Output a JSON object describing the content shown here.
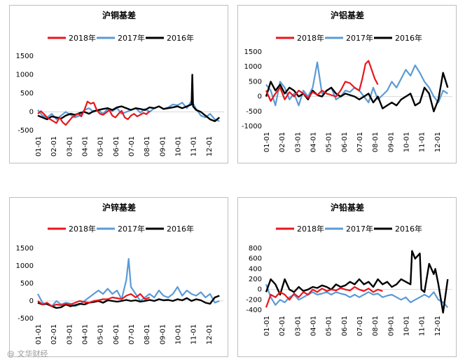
{
  "watermark": "@ 文华财经",
  "series_colors": {
    "2018年": "#e8161c",
    "2017年": "#5b9bd5",
    "2016年": "#000000"
  },
  "chart_data": [
    {
      "type": "line",
      "title": "沪铜基差",
      "legend": [
        "2018年",
        "2017年",
        "2016年"
      ],
      "ylim": [
        -500,
        1500
      ],
      "yticks": [
        -500,
        0,
        500,
        1000,
        1500
      ],
      "categories": [
        "01-01",
        "02-01",
        "03-01",
        "04-01",
        "05-01",
        "06-01",
        "07-01",
        "08-01",
        "09-01",
        "10-01",
        "11-01",
        "12-01"
      ],
      "series": [
        {
          "name": "2018年",
          "x": [
            0,
            0.2,
            0.4,
            0.6,
            0.8,
            1.0,
            1.2,
            1.4,
            1.6,
            1.8,
            2.0,
            2.2,
            2.4,
            2.6,
            2.8,
            3.0,
            3.2,
            3.4,
            3.6,
            3.8,
            4.0,
            4.2,
            4.4,
            4.6,
            4.8,
            5.0,
            5.2,
            5.4,
            5.6,
            5.8,
            6.0,
            6.2,
            6.4,
            6.6,
            6.8,
            7.0,
            7.2
          ],
          "values": [
            -50,
            20,
            -60,
            -150,
            -200,
            -250,
            -300,
            -150,
            -280,
            -350,
            -250,
            -150,
            -100,
            -50,
            -120,
            50,
            280,
            220,
            250,
            50,
            -50,
            -80,
            -20,
            50,
            -100,
            -150,
            -50,
            30,
            -150,
            -200,
            -100,
            -50,
            -120,
            -80,
            -30,
            -60,
            20
          ]
        },
        {
          "name": "2017年",
          "x": [
            0,
            0.3,
            0.6,
            0.9,
            1.2,
            1.5,
            1.8,
            2.1,
            2.4,
            2.7,
            3.0,
            3.3,
            3.6,
            3.9,
            4.2,
            4.5,
            4.8,
            5.1,
            5.4,
            5.7,
            6.0,
            6.3,
            6.6,
            6.9,
            7.2,
            7.5,
            7.8,
            8.1,
            8.4,
            8.7,
            9.0,
            9.3,
            9.6,
            9.9,
            10.2,
            10.5,
            10.8,
            11.1,
            11.4,
            11.7
          ],
          "values": [
            50,
            -100,
            -150,
            -50,
            -200,
            -100,
            0,
            -80,
            -150,
            -100,
            50,
            100,
            0,
            50,
            -50,
            80,
            20,
            100,
            -50,
            0,
            50,
            100,
            -20,
            80,
            0,
            100,
            150,
            80,
            120,
            200,
            180,
            250,
            100,
            300,
            80,
            -100,
            -150,
            -50,
            -200,
            -250
          ]
        },
        {
          "name": "2016年",
          "x": [
            0,
            0.3,
            0.6,
            0.9,
            1.2,
            1.5,
            1.8,
            2.1,
            2.4,
            2.7,
            3.0,
            3.3,
            3.6,
            3.9,
            4.2,
            4.5,
            4.8,
            5.1,
            5.4,
            5.7,
            6.0,
            6.3,
            6.6,
            6.9,
            7.2,
            7.5,
            7.8,
            8.1,
            8.4,
            8.7,
            9.0,
            9.3,
            9.6,
            9.9,
            9.95,
            10.0,
            10.2,
            10.5,
            10.8,
            11.1,
            11.4,
            11.7
          ],
          "values": [
            -100,
            -150,
            -200,
            -120,
            -150,
            -180,
            -100,
            -50,
            -80,
            -30,
            0,
            -50,
            20,
            50,
            80,
            100,
            50,
            120,
            150,
            100,
            50,
            100,
            80,
            50,
            120,
            100,
            150,
            80,
            100,
            120,
            150,
            100,
            150,
            200,
            1000,
            150,
            50,
            0,
            -100,
            -200,
            -250,
            -150
          ]
        }
      ]
    },
    {
      "type": "line",
      "title": "沪铝基差",
      "legend": [
        "2018年",
        "2017年",
        "2016年"
      ],
      "ylim": [
        -1000,
        1500
      ],
      "yticks": [
        -1000,
        -500,
        0,
        500,
        1000,
        1500
      ],
      "categories": [
        "01-01",
        "02-01",
        "03-01",
        "04-01",
        "05-01",
        "06-01",
        "07-01",
        "08-01",
        "09-01",
        "10-01",
        "11-01",
        "12-01"
      ],
      "series": [
        {
          "name": "2018年",
          "x": [
            0,
            0.3,
            0.6,
            0.9,
            1.2,
            1.5,
            1.8,
            2.1,
            2.4,
            2.7,
            3.0,
            3.3,
            3.6,
            3.9,
            4.2,
            4.5,
            4.8,
            5.1,
            5.4,
            5.7,
            6.0,
            6.2,
            6.4,
            6.6,
            6.8,
            7.0,
            7.2
          ],
          "values": [
            200,
            -150,
            100,
            300,
            -100,
            150,
            0,
            200,
            100,
            -50,
            150,
            50,
            200,
            100,
            50,
            0,
            200,
            500,
            450,
            300,
            200,
            600,
            1100,
            1200,
            900,
            600,
            400
          ]
        },
        {
          "name": "2017年",
          "x": [
            0,
            0.3,
            0.6,
            0.9,
            1.2,
            1.5,
            1.8,
            2.1,
            2.4,
            2.7,
            3.0,
            3.3,
            3.6,
            3.9,
            4.2,
            4.5,
            4.8,
            5.1,
            5.4,
            5.7,
            6.0,
            6.3,
            6.6,
            6.9,
            7.2,
            7.5,
            7.8,
            8.1,
            8.4,
            8.7,
            9.0,
            9.3,
            9.6,
            9.9,
            10.2,
            10.5,
            10.8,
            11.1,
            11.4,
            11.7
          ],
          "values": [
            400,
            200,
            -300,
            500,
            300,
            -100,
            100,
            -300,
            200,
            0,
            300,
            1150,
            100,
            200,
            300,
            -100,
            0,
            200,
            150,
            300,
            200,
            0,
            -200,
            300,
            -100,
            50,
            200,
            500,
            300,
            600,
            900,
            700,
            1050,
            800,
            500,
            300,
            0,
            -200,
            200,
            100
          ]
        },
        {
          "name": "2016年",
          "x": [
            0,
            0.3,
            0.6,
            0.9,
            1.2,
            1.5,
            1.8,
            2.1,
            2.4,
            2.7,
            3.0,
            3.3,
            3.6,
            3.9,
            4.2,
            4.5,
            4.8,
            5.1,
            5.4,
            5.7,
            6.0,
            6.3,
            6.6,
            6.9,
            7.2,
            7.5,
            7.8,
            8.1,
            8.4,
            8.7,
            9.0,
            9.3,
            9.6,
            9.9,
            10.2,
            10.5,
            10.8,
            11.1,
            11.4,
            11.7
          ],
          "values": [
            0,
            500,
            200,
            400,
            100,
            300,
            200,
            0,
            100,
            -100,
            200,
            50,
            0,
            200,
            300,
            100,
            0,
            100,
            50,
            0,
            -100,
            0,
            100,
            -200,
            0,
            -400,
            -300,
            -200,
            -300,
            -100,
            0,
            100,
            -300,
            -200,
            300,
            100,
            -500,
            -100,
            800,
            300
          ]
        }
      ]
    },
    {
      "type": "line",
      "title": "沪锌基差",
      "legend": [
        "2018年",
        "2017年",
        "2016年"
      ],
      "ylim": [
        -500,
        1500
      ],
      "yticks": [
        -500,
        0,
        500,
        1000,
        1500
      ],
      "categories": [
        "01-01",
        "02-01",
        "03-01",
        "04-01",
        "05-01",
        "06-01",
        "07-01",
        "08-01",
        "09-01",
        "10-01",
        "11-01",
        "12-01"
      ],
      "series": [
        {
          "name": "2018年",
          "x": [
            0,
            0.3,
            0.6,
            0.9,
            1.2,
            1.5,
            1.8,
            2.1,
            2.4,
            2.7,
            3.0,
            3.3,
            3.6,
            3.9,
            4.2,
            4.5,
            4.8,
            5.1,
            5.4,
            5.7,
            6.0,
            6.3,
            6.6,
            6.9,
            7.2
          ],
          "values": [
            0,
            -100,
            -50,
            -150,
            -100,
            -120,
            -80,
            -100,
            -50,
            0,
            -30,
            -50,
            0,
            20,
            50,
            50,
            100,
            80,
            50,
            150,
            200,
            100,
            200,
            50,
            100
          ]
        },
        {
          "name": "2017年",
          "x": [
            0,
            0.3,
            0.6,
            0.9,
            1.2,
            1.5,
            1.8,
            2.1,
            2.4,
            2.7,
            3.0,
            3.3,
            3.6,
            3.9,
            4.2,
            4.5,
            4.8,
            5.1,
            5.4,
            5.7,
            5.85,
            6.0,
            6.3,
            6.6,
            6.9,
            7.2,
            7.5,
            7.8,
            8.1,
            8.4,
            8.7,
            9.0,
            9.3,
            9.6,
            9.9,
            10.2,
            10.5,
            10.8,
            11.1,
            11.4,
            11.7
          ],
          "values": [
            200,
            -50,
            -100,
            -150,
            0,
            -100,
            -50,
            -80,
            -150,
            -100,
            0,
            100,
            200,
            300,
            200,
            350,
            200,
            300,
            50,
            600,
            1200,
            400,
            200,
            0,
            100,
            200,
            100,
            300,
            150,
            100,
            200,
            400,
            150,
            300,
            200,
            150,
            250,
            100,
            200,
            -50,
            0
          ]
        },
        {
          "name": "2016年",
          "x": [
            0,
            0.3,
            0.6,
            0.9,
            1.2,
            1.5,
            1.8,
            2.1,
            2.4,
            2.7,
            3.0,
            3.3,
            3.6,
            3.9,
            4.2,
            4.5,
            4.8,
            5.1,
            5.4,
            5.7,
            6.0,
            6.3,
            6.6,
            6.9,
            7.2,
            7.5,
            7.8,
            8.1,
            8.4,
            8.7,
            9.0,
            9.3,
            9.6,
            9.9,
            10.2,
            10.5,
            10.8,
            11.1,
            11.4,
            11.7
          ],
          "values": [
            -50,
            -100,
            -80,
            -150,
            -200,
            -180,
            -100,
            -150,
            -120,
            -80,
            -100,
            -50,
            -30,
            0,
            -50,
            20,
            0,
            -20,
            0,
            30,
            0,
            20,
            -20,
            0,
            30,
            0,
            50,
            20,
            30,
            0,
            50,
            20,
            80,
            0,
            50,
            20,
            -50,
            -80,
            100,
            150
          ]
        }
      ]
    },
    {
      "type": "line",
      "title": "沪铅基差",
      "legend": [
        "2018年",
        "2017年",
        "2016年"
      ],
      "ylim": [
        -400,
        800
      ],
      "yticks": [
        -400,
        -200,
        0,
        200,
        400,
        600,
        800
      ],
      "categories": [
        "01-01",
        "02-01",
        "03-01",
        "04-01",
        "05-01",
        "06-01",
        "07-01",
        "08-01",
        "09-01",
        "10-01",
        "11-01",
        "12-01"
      ],
      "series": [
        {
          "name": "2018年",
          "x": [
            0,
            0.3,
            0.6,
            0.9,
            1.2,
            1.5,
            1.8,
            2.1,
            2.4,
            2.7,
            3.0,
            3.3,
            3.6,
            3.9,
            4.2,
            4.5,
            4.8,
            5.1,
            5.4,
            5.7,
            6.0,
            6.3,
            6.6,
            6.9,
            7.2,
            7.5
          ],
          "values": [
            -350,
            -100,
            -150,
            -50,
            -100,
            -200,
            -80,
            -150,
            -50,
            -100,
            0,
            -50,
            20,
            -30,
            0,
            -20,
            30,
            0,
            -20,
            50,
            0,
            -30,
            20,
            -50,
            0,
            -30
          ]
        },
        {
          "name": "2017年",
          "x": [
            0,
            0.3,
            0.6,
            0.9,
            1.2,
            1.5,
            1.8,
            2.1,
            2.4,
            2.7,
            3.0,
            3.3,
            3.6,
            3.9,
            4.2,
            4.5,
            4.8,
            5.1,
            5.4,
            5.7,
            6.0,
            6.3,
            6.6,
            6.9,
            7.2,
            7.5,
            7.8,
            8.1,
            8.4,
            8.7,
            9.0,
            9.3,
            9.6,
            9.9,
            10.2,
            10.5,
            10.8,
            11.1,
            11.4,
            11.7
          ],
          "values": [
            100,
            -150,
            -300,
            -200,
            -250,
            -150,
            -100,
            -200,
            -150,
            -100,
            -50,
            -100,
            -80,
            -50,
            -100,
            -50,
            -80,
            -100,
            -150,
            -100,
            -150,
            -100,
            -50,
            -100,
            -80,
            -150,
            -120,
            -100,
            -150,
            -200,
            -150,
            -250,
            -200,
            -150,
            -100,
            -150,
            -50,
            -200,
            -250,
            -350
          ]
        },
        {
          "name": "2016年",
          "x": [
            0,
            0.3,
            0.6,
            0.9,
            1.2,
            1.5,
            1.8,
            2.1,
            2.4,
            2.7,
            3.0,
            3.3,
            3.6,
            3.9,
            4.2,
            4.5,
            4.8,
            5.1,
            5.4,
            5.7,
            6.0,
            6.3,
            6.6,
            6.9,
            7.2,
            7.5,
            7.8,
            8.1,
            8.4,
            8.7,
            9.0,
            9.3,
            9.4,
            9.6,
            9.9,
            10.0,
            10.2,
            10.5,
            10.8,
            10.9,
            11.1,
            11.4,
            11.7
          ],
          "values": [
            -50,
            200,
            100,
            -100,
            200,
            0,
            -50,
            50,
            -30,
            0,
            50,
            30,
            80,
            50,
            0,
            100,
            50,
            80,
            150,
            100,
            200,
            100,
            150,
            50,
            200,
            100,
            150,
            50,
            100,
            200,
            150,
            100,
            750,
            600,
            700,
            0,
            -50,
            500,
            300,
            400,
            100,
            -450,
            200
          ]
        }
      ]
    }
  ]
}
